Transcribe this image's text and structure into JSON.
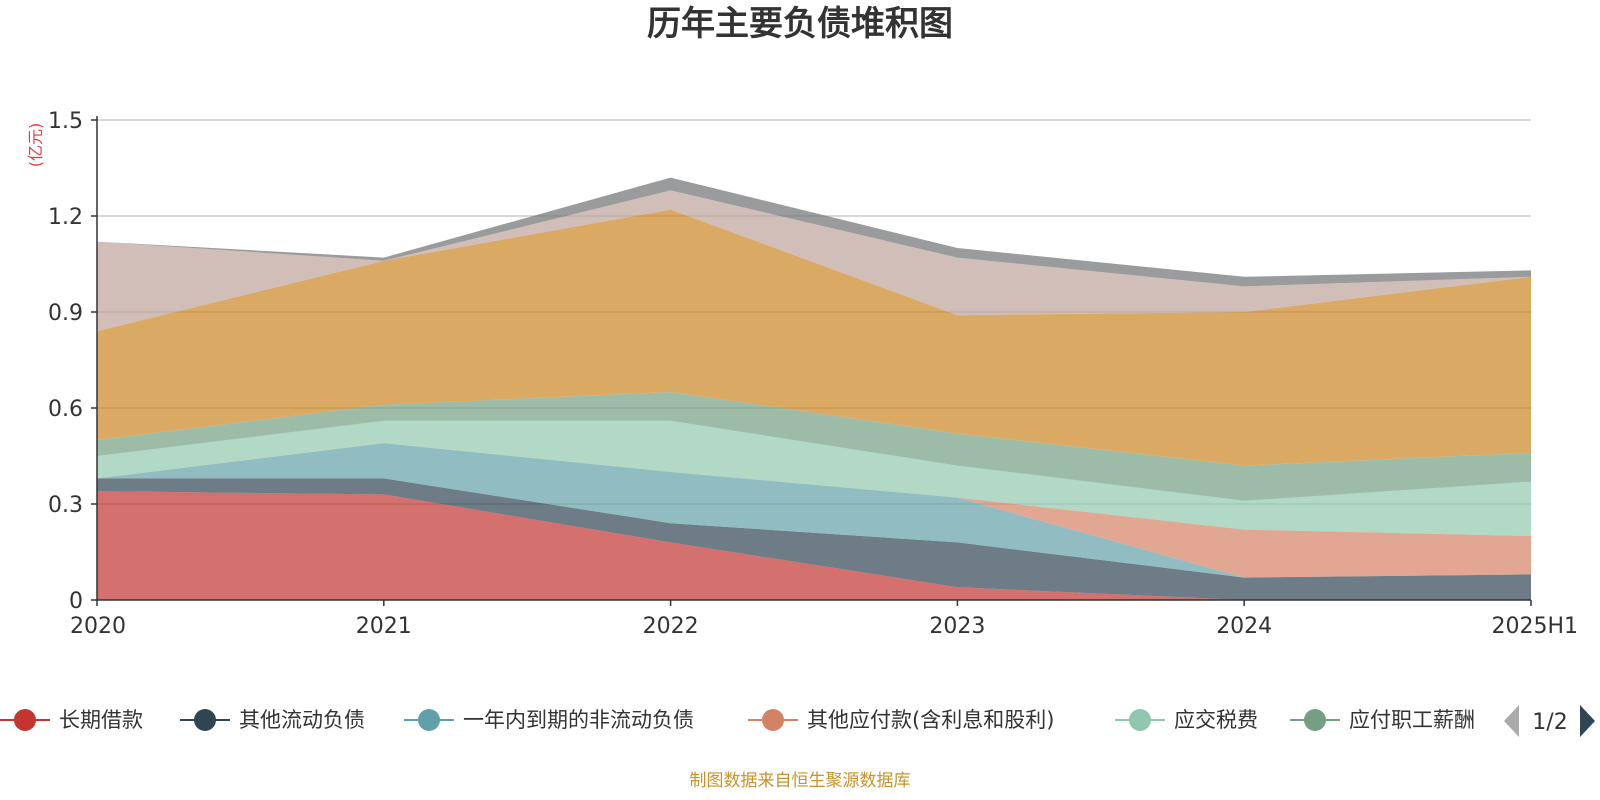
{
  "chart_data": {
    "type": "area",
    "stacked": true,
    "title": "历年主要负债堆积图",
    "unit_label": "(亿元)",
    "categories": [
      "2020",
      "2021",
      "2022",
      "2023",
      "2024",
      "2025H1"
    ],
    "y_ticks": [
      "0",
      "0.3",
      "0.6",
      "0.9",
      "1.2",
      "1.5"
    ],
    "ylim": [
      0,
      1.5
    ],
    "grid": true,
    "series": [
      {
        "name": "长期借款",
        "color": "#c23531",
        "values": [
          0.34,
          0.33,
          0.18,
          0.04,
          0.0,
          0.0
        ]
      },
      {
        "name": "其他流动负债",
        "color": "#2f4554",
        "values": [
          0.04,
          0.05,
          0.06,
          0.14,
          0.07,
          0.08
        ]
      },
      {
        "name": "一年内到期的非流动负债",
        "color": "#61a0a8",
        "values": [
          0.0,
          0.11,
          0.16,
          0.14,
          0.0,
          0.0
        ]
      },
      {
        "name": "其他应付款(含利息和股利)",
        "color": "#d48265",
        "values": [
          0.0,
          0.0,
          0.0,
          0.0,
          0.15,
          0.12
        ]
      },
      {
        "name": "应交税费",
        "color": "#91c7ae",
        "values": [
          0.07,
          0.07,
          0.16,
          0.1,
          0.09,
          0.17
        ]
      },
      {
        "name": "应付职工薪酬",
        "color": "#749f83",
        "values": [
          0.05,
          0.05,
          0.09,
          0.1,
          0.11,
          0.09
        ]
      },
      {
        "name": "",
        "color": "#ca8622",
        "values": [
          0.34,
          0.45,
          0.57,
          0.37,
          0.48,
          0.55
        ]
      },
      {
        "name": "",
        "color": "#bda29a",
        "values": [
          0.28,
          0.0,
          0.06,
          0.18,
          0.08,
          0.0
        ]
      },
      {
        "name": "",
        "color": "#6e7074",
        "values": [
          0.0,
          0.01,
          0.04,
          0.03,
          0.03,
          0.02
        ]
      }
    ],
    "legend": {
      "placement": "bottom",
      "visible_items": [
        "长期借款",
        "其他流动负债",
        "一年内到期的非流动负债",
        "其他应付款(含利息和股利)",
        "应交税费",
        "应付职工薪酬"
      ],
      "page": "1/2"
    },
    "source": "制图数据来自恒生聚源数据库"
  }
}
